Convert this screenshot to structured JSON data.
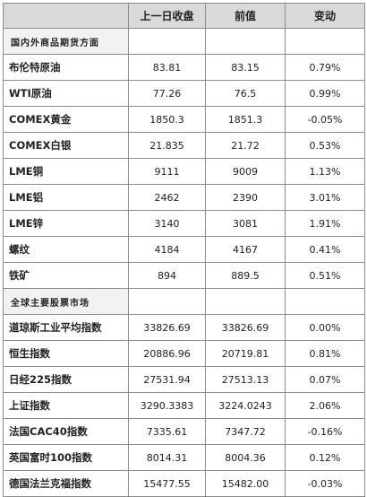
{
  "header": {
    "col0": "",
    "col1": "上一日收盘",
    "col2": "前值",
    "col3": "变动"
  },
  "sections": [
    {
      "title": "国内外商品期货方面",
      "rows": [
        {
          "name": "布伦特原油",
          "prev_close": "83.81",
          "prior": "83.15",
          "change": "0.79%"
        },
        {
          "name": "WTI原油",
          "prev_close": "77.26",
          "prior": "76.5",
          "change": "0.99%"
        },
        {
          "name": "COMEX黄金",
          "prev_close": "1850.3",
          "prior": "1851.3",
          "change": "-0.05%"
        },
        {
          "name": "COMEX白银",
          "prev_close": "21.835",
          "prior": "21.72",
          "change": "0.53%"
        },
        {
          "name": "LME铜",
          "prev_close": "9111",
          "prior": "9009",
          "change": "1.13%"
        },
        {
          "name": "LME铝",
          "prev_close": "2462",
          "prior": "2390",
          "change": "3.01%"
        },
        {
          "name": "LME锌",
          "prev_close": "3140",
          "prior": "3081",
          "change": "1.91%"
        },
        {
          "name": "螺纹",
          "prev_close": "4184",
          "prior": "4167",
          "change": "0.41%"
        },
        {
          "name": "铁矿",
          "prev_close": "894",
          "prior": "889.5",
          "change": "0.51%"
        }
      ]
    },
    {
      "title": "全球主要股票市场",
      "rows": [
        {
          "name": "道琼斯工业平均指数",
          "prev_close": "33826.69",
          "prior": "33826.69",
          "change": "0.00%"
        },
        {
          "name": "恒生指数",
          "prev_close": "20886.96",
          "prior": "20719.81",
          "change": "0.81%"
        },
        {
          "name": "日经225指数",
          "prev_close": "27531.94",
          "prior": "27513.13",
          "change": "0.07%"
        },
        {
          "name": "上证指数",
          "prev_close": "3290.3383",
          "prior": "3224.0243",
          "change": "2.06%"
        },
        {
          "name": "法国CAC40指数",
          "prev_close": "7335.61",
          "prior": "7347.72",
          "change": "-0.16%"
        },
        {
          "name": "英国富时100指数",
          "prev_close": "8014.31",
          "prior": "8004.36",
          "change": "0.12%"
        },
        {
          "name": "德国法兰克福指数",
          "prev_close": "15477.55",
          "prior": "15482.00",
          "change": "-0.03%"
        }
      ]
    }
  ]
}
